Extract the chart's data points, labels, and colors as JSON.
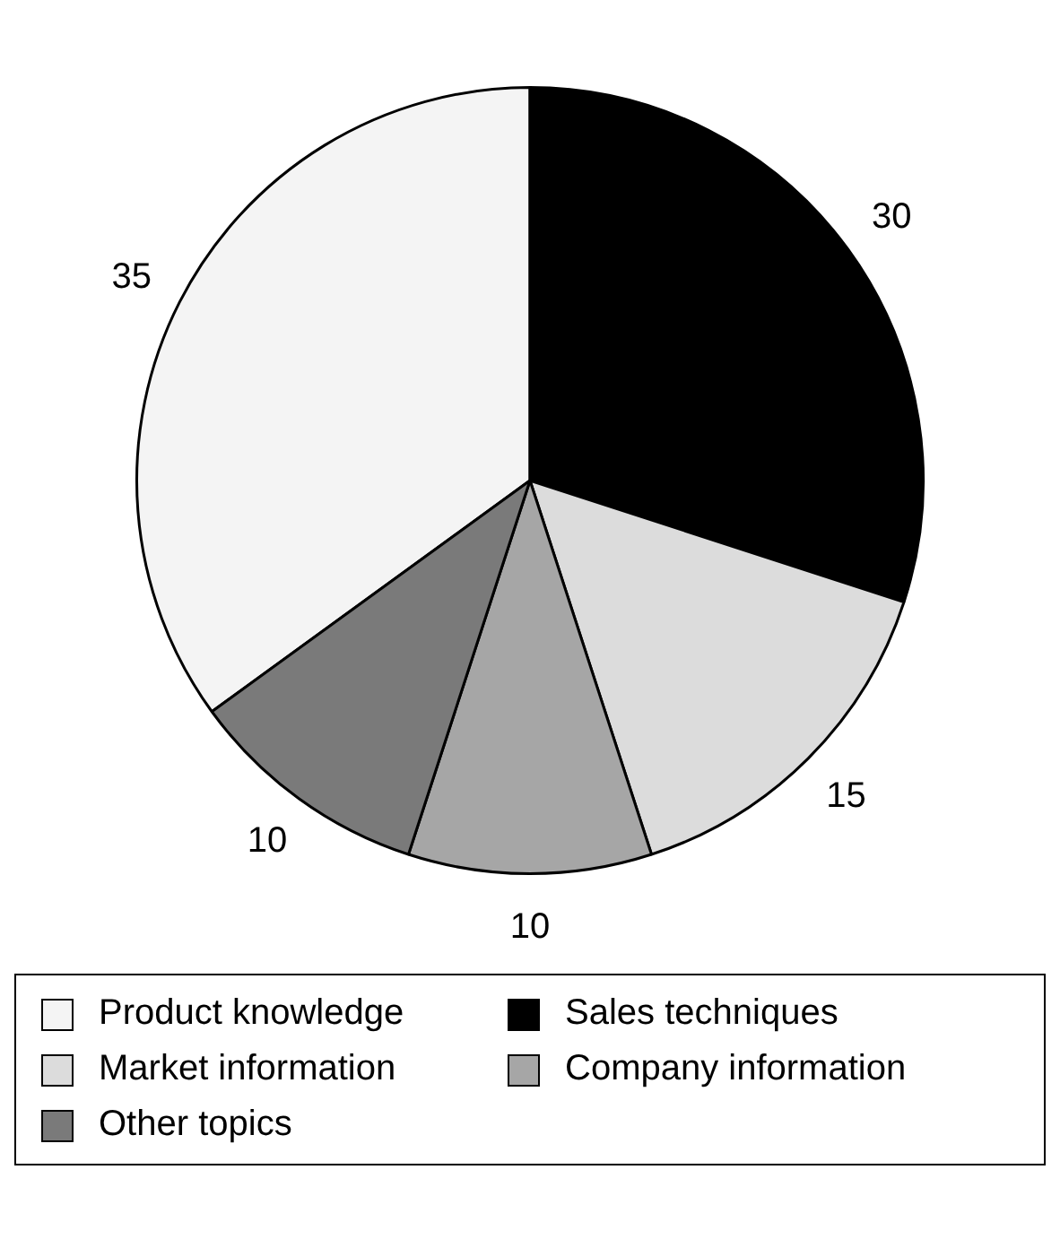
{
  "chart_data": {
    "type": "pie",
    "categories": [
      "Product knowledge",
      "Sales techniques",
      "Market information",
      "Company information",
      "Other topics"
    ],
    "values": [
      35,
      30,
      15,
      10,
      10
    ],
    "colors": [
      "#f4f4f4",
      "#000000",
      "#dcdcdc",
      "#a6a6a6",
      "#7a7a7a"
    ],
    "data_labels": true,
    "legend": "bottom"
  }
}
